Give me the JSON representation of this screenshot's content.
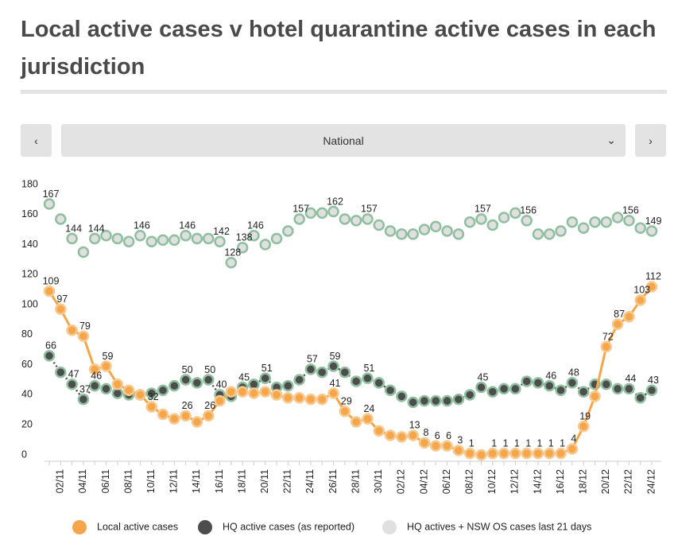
{
  "header": {
    "title": "Local active cases v hotel quarantine active cases in each jurisdiction"
  },
  "selector": {
    "value": "National"
  },
  "chart_data": {
    "type": "line",
    "categories": [
      null,
      "02/11",
      null,
      "04/11",
      null,
      "06/11",
      null,
      "08/11",
      null,
      "10/11",
      null,
      "12/11",
      null,
      "14/11",
      null,
      "16/11",
      null,
      "18/11",
      null,
      "20/11",
      null,
      "22/11",
      null,
      "24/11",
      null,
      "26/11",
      null,
      "28/11",
      null,
      "30/11",
      null,
      "02/12",
      null,
      "04/12",
      null,
      "06/12",
      null,
      "08/12",
      null,
      "10/12",
      null,
      "12/12",
      null,
      "14/12",
      null,
      "16/12",
      null,
      "18/12",
      null,
      "20/12",
      null,
      "22/12",
      null,
      "24/12"
    ],
    "ylim": [
      0,
      180
    ],
    "yticks": [
      0,
      20,
      40,
      60,
      80,
      100,
      120,
      140,
      160,
      180
    ],
    "grid": false,
    "series": [
      {
        "name": "HQ actives + NSW OS cases last 21 days",
        "color": "#e0e0e0",
        "stroke": "#8fbf9f",
        "line": "none",
        "values": [
          167,
          157,
          144,
          135,
          144,
          146,
          144,
          142,
          146,
          142,
          143,
          143,
          146,
          144,
          144,
          142,
          128,
          138,
          146,
          140,
          144,
          149,
          157,
          161,
          161,
          162,
          157,
          156,
          157,
          153,
          149,
          147,
          147,
          150,
          152,
          149,
          147,
          155,
          157,
          153,
          158,
          161,
          156,
          147,
          147,
          149,
          155,
          151,
          155,
          155,
          158,
          156,
          151,
          149
        ],
        "value_labels": [
          "167",
          null,
          "144",
          null,
          "144",
          null,
          null,
          null,
          "146",
          null,
          null,
          null,
          "146",
          null,
          null,
          "142",
          "128",
          "138",
          "146",
          null,
          null,
          null,
          "157",
          null,
          null,
          "162",
          null,
          null,
          "157",
          null,
          null,
          null,
          null,
          null,
          null,
          null,
          null,
          null,
          "157",
          null,
          null,
          null,
          "156",
          null,
          null,
          null,
          null,
          null,
          null,
          null,
          null,
          "156",
          null,
          "149"
        ]
      },
      {
        "name": "HQ active cases (as reported)",
        "color": "#4d4d4d",
        "stroke": "#8fbf9f",
        "line": "dotted",
        "values": [
          66,
          55,
          47,
          37,
          46,
          44,
          41,
          40,
          40,
          41,
          43,
          46,
          50,
          48,
          50,
          40,
          39,
          45,
          47,
          51,
          45,
          46,
          50,
          57,
          55,
          59,
          55,
          49,
          51,
          48,
          43,
          39,
          35,
          36,
          36,
          36,
          37,
          40,
          45,
          42,
          44,
          44,
          49,
          48,
          46,
          43,
          48,
          42,
          47,
          47,
          44,
          44,
          38,
          43
        ],
        "value_labels": [
          "66",
          null,
          "47",
          "37",
          "46",
          null,
          null,
          null,
          null,
          null,
          null,
          null,
          "50",
          null,
          "50",
          "40",
          null,
          "45",
          null,
          "51",
          null,
          null,
          null,
          "57",
          null,
          "59",
          null,
          null,
          "51",
          null,
          null,
          null,
          null,
          null,
          null,
          null,
          null,
          null,
          "45",
          null,
          null,
          null,
          null,
          null,
          "46",
          null,
          "48",
          null,
          null,
          null,
          null,
          "44",
          null,
          "43"
        ]
      },
      {
        "name": "Local active cases",
        "color": "#f5a54a",
        "stroke": "#f7c98e",
        "line": "solid",
        "values": [
          109,
          97,
          83,
          79,
          57,
          59,
          47,
          43,
          40,
          32,
          27,
          24,
          26,
          22,
          26,
          36,
          42,
          42,
          41,
          42,
          40,
          38,
          38,
          37,
          37,
          41,
          29,
          22,
          24,
          16,
          13,
          12,
          13,
          8,
          6,
          6,
          3,
          1,
          0,
          1,
          1,
          1,
          1,
          1,
          1,
          1,
          4,
          19,
          39,
          72,
          87,
          92,
          103,
          112
        ],
        "value_labels": [
          "109",
          "97",
          null,
          "79",
          null,
          "59",
          null,
          null,
          null,
          "32",
          null,
          null,
          "26",
          null,
          "26",
          null,
          null,
          null,
          null,
          null,
          null,
          null,
          null,
          null,
          null,
          "41",
          "29",
          null,
          "24",
          null,
          null,
          null,
          "13",
          "8",
          "6",
          "6",
          "3",
          "1",
          null,
          "1",
          "1",
          "1",
          "1",
          "1",
          "1",
          "1",
          "4",
          "19",
          null,
          "72",
          "87",
          null,
          "103",
          "112"
        ]
      }
    ]
  }
}
